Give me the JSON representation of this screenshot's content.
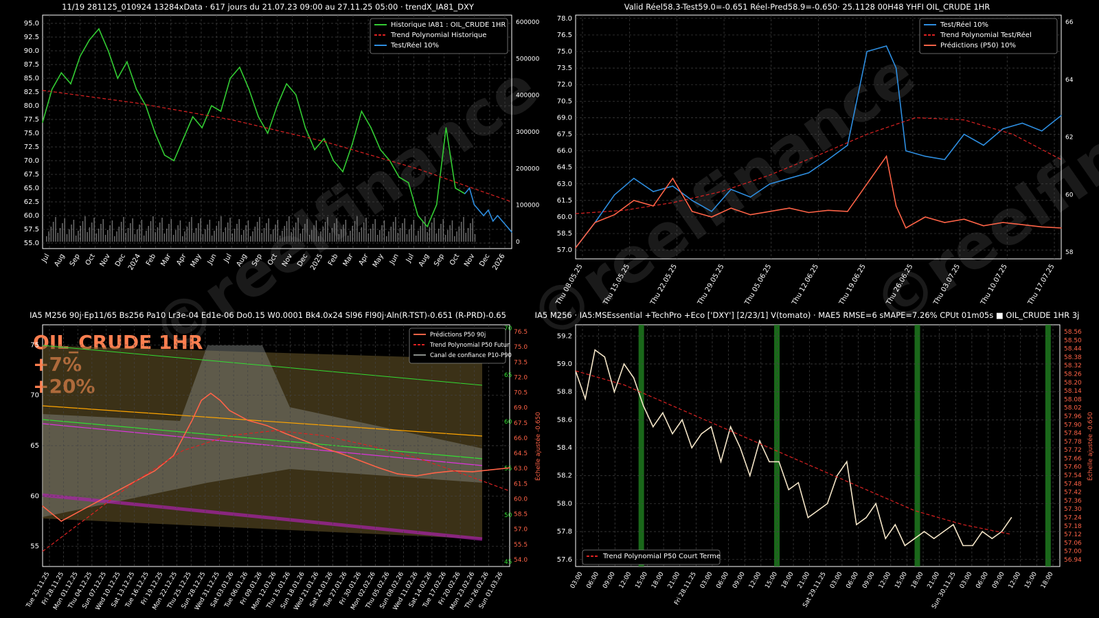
{
  "colors": {
    "background": "#000000",
    "hist_green": "#33cc33",
    "trend_red": "#dd2222",
    "test_blue": "#2e8ee0",
    "pred_tomato": "#ff6347",
    "volume_gray": "#888888",
    "grid": "#555555",
    "axis_red": "#ff6347"
  },
  "chart_data": [
    {
      "id": "top-left",
      "type": "line",
      "title": "11/19 281125_010924 13284xData · 617 jours du 21.07.23 09:00 au 27.11.25 05:00 · trendX_IA81_DXY",
      "x_tick_labels": [
        "Jul",
        "Aug",
        "Sep",
        "Oct",
        "Nov",
        "Dec",
        "2024",
        "Feb",
        "Mar",
        "Apr",
        "May",
        "Jun",
        "Jul",
        "Aug",
        "Sep",
        "Oct",
        "Nov",
        "Dec",
        "2025",
        "Feb",
        "Mar",
        "Apr",
        "May",
        "Jun",
        "Jul",
        "Aug",
        "Sep",
        "Oct",
        "Nov",
        "Dec",
        "2026"
      ],
      "y_tick_labels": [
        "95.0",
        "92.5",
        "90.0",
        "87.5",
        "85.0",
        "82.5",
        "80.0",
        "77.5",
        "75.0",
        "72.5",
        "70.0",
        "67.5",
        "65.0",
        "62.5",
        "60.0",
        "57.5",
        "55.0"
      ],
      "y2_tick_labels": [
        "600000",
        "500000",
        "400000",
        "300000",
        "200000",
        "100000",
        "0"
      ],
      "ylim": [
        54,
        96.5
      ],
      "y2lim": [
        0,
        620000
      ],
      "legend_position": "top-right",
      "legend": [
        "Historique IA81 : OIL_CRUDE 1HR",
        "Trend Polynomial Historique",
        "Test/Réel 10%"
      ],
      "series": [
        {
          "name": "Historique IA81 : OIL_CRUDE 1HR",
          "color": "#33cc33",
          "x": [
            0,
            2,
            4,
            6,
            8,
            10,
            12,
            14,
            16,
            18,
            20,
            22,
            24,
            26,
            28,
            30,
            32,
            34,
            36,
            38,
            40,
            42,
            44,
            46,
            48,
            50,
            52,
            54,
            56,
            58,
            60,
            62,
            64,
            66,
            68,
            70,
            72,
            74,
            76,
            78,
            80,
            82,
            84,
            86,
            88,
            90
          ],
          "y": [
            77,
            83,
            86,
            84,
            89,
            92,
            94,
            90,
            85,
            88,
            83,
            80,
            75,
            71,
            70,
            74,
            78,
            76,
            80,
            79,
            85,
            87,
            83,
            78,
            75,
            80,
            84,
            82,
            76,
            72,
            74,
            70,
            68,
            73,
            79,
            76,
            72,
            70,
            67,
            66,
            60,
            58,
            62,
            76,
            65,
            64
          ]
        },
        {
          "name": "Test/Réel 10%",
          "color": "#2e8ee0",
          "x": [
            90,
            91,
            92,
            93,
            94,
            95,
            96,
            97,
            98,
            99,
            100
          ],
          "y": [
            64,
            65,
            62,
            61,
            60,
            61,
            59,
            60,
            59,
            58,
            57
          ]
        },
        {
          "name": "Trend Polynomial Historique",
          "color": "#dd2222",
          "dashed": true,
          "x": [
            0,
            20,
            40,
            60,
            80,
            100
          ],
          "y": [
            82.8,
            80.5,
            77.5,
            73.5,
            68.5,
            62.5
          ]
        }
      ]
    },
    {
      "id": "top-right",
      "type": "line",
      "title": "Valid Réel58.3-Test59.0=-0.651 Réel-Pred58.9=-0.650· 25.1128 00H48 YHFI OIL_CRUDE 1HR",
      "x_tick_labels": [
        "Thu 08.05.25",
        "Thu 15.05.25",
        "Thu 22.05.25",
        "Thu 29.05.25",
        "Thu 05.06.25",
        "Thu 12.06.25",
        "Thu 19.06.25",
        "Thu 26.06.25",
        "Thu 03.07.25",
        "Thu 10.07.25",
        "Thu 17.07.25"
      ],
      "y_tick_labels": [
        "78.0",
        "76.5",
        "75.0",
        "73.5",
        "72.0",
        "70.5",
        "69.0",
        "67.5",
        "66.0",
        "64.5",
        "63.0",
        "61.5",
        "60.0",
        "58.5",
        "57.0"
      ],
      "y2_tick_labels": [
        "66",
        "64",
        "62",
        "60",
        "58"
      ],
      "ylim": [
        56.2,
        78.3
      ],
      "y2lim": [
        57.3,
        66.1
      ],
      "legend_position": "top-right",
      "legend": [
        "Test/Réel 10%",
        "Trend Polynomial Test/Réel",
        "Prédictions (P50) 10%"
      ],
      "series": [
        {
          "name": "Test/Réel 10%",
          "color": "#2e8ee0",
          "x": [
            0,
            4,
            8,
            12,
            16,
            20,
            24,
            28,
            32,
            36,
            40,
            44,
            48,
            52,
            56,
            60,
            64,
            66,
            68,
            72,
            76,
            80,
            84,
            88,
            92,
            96,
            100
          ],
          "y": [
            57.2,
            59.5,
            62.0,
            63.5,
            62.3,
            62.8,
            61.5,
            60.5,
            62.5,
            61.8,
            63.0,
            63.5,
            64.0,
            65.2,
            66.5,
            75.0,
            75.5,
            73.5,
            66.0,
            65.5,
            65.2,
            67.5,
            66.5,
            68.0,
            68.5,
            67.8,
            69.2
          ]
        },
        {
          "name": "Trend Polynomial Test/Réel",
          "color": "#dd2222",
          "dashed": true,
          "x": [
            0,
            10,
            20,
            30,
            40,
            50,
            60,
            70,
            80,
            90,
            100
          ],
          "y": [
            60.3,
            60.6,
            61.3,
            62.3,
            63.8,
            65.6,
            67.5,
            69.0,
            68.8,
            67.5,
            65.2
          ]
        },
        {
          "name": "Prédictions (P50) 10%",
          "color": "#ff6347",
          "x": [
            0,
            4,
            8,
            12,
            16,
            20,
            24,
            28,
            32,
            36,
            40,
            44,
            48,
            52,
            56,
            60,
            64,
            66,
            68,
            72,
            76,
            80,
            84,
            88,
            92,
            96,
            100
          ],
          "y": [
            57.2,
            59.5,
            60.2,
            61.5,
            61.0,
            63.5,
            60.5,
            60.0,
            60.8,
            60.2,
            60.5,
            60.8,
            60.4,
            60.6,
            60.5,
            63.0,
            65.5,
            61.0,
            59.0,
            60.0,
            59.5,
            59.8,
            59.2,
            59.5,
            59.3,
            59.1,
            59.0
          ]
        }
      ]
    },
    {
      "id": "bottom-left",
      "type": "line",
      "title": "IA5 M256 90j·Ep11/65 Bs256 Pa10 Lr3e-04 Ed1e-06 Do0.15 W0.0001 Bk4.0x24 Sl96 Fl90j·Aln(R-TST)-0.651 (R-PRD)-0.65",
      "overlay_text": [
        "OIL_CRUDE 1HR",
        "+7%",
        "+20%"
      ],
      "x_tick_labels": [
        "Tue 25.11.25",
        "Fri 28.11.25",
        "Mon 01.12.25",
        "Thu 04.12.25",
        "Sun 07.12.25",
        "Wed 10.12.25",
        "Sat 13.12.25",
        "Tue 16.12.25",
        "Fri 19.12.25",
        "Mon 22.12.25",
        "Thu 25.12.25",
        "Sun 28.12.25",
        "Wed 31.12.25",
        "Sat 03.01.26",
        "Tue 06.01.26",
        "Fri 09.01.26",
        "Mon 12.01.26",
        "Thu 15.01.26",
        "Sun 18.01.26",
        "Wed 21.01.26",
        "Sat 24.01.26",
        "Tue 27.01.26",
        "Fri 30.01.26",
        "Mon 02.02.26",
        "Thu 05.02.26",
        "Sun 08.02.26",
        "Wed 11.02.26",
        "Sat 14.02.26",
        "Tue 17.02.26",
        "Fri 20.02.26",
        "Mon 23.02.26",
        "Thu 26.02.26",
        "Sun 01.03.26"
      ],
      "y_tick_labels": [
        "75",
        "70",
        "65",
        "60",
        "55"
      ],
      "y2_tick_labels": [
        "76.5",
        "75.0",
        "73.5",
        "72.0",
        "70.5",
        "69.0",
        "67.5",
        "66.0",
        "64.5",
        "63.0",
        "61.5",
        "60.0",
        "58.5",
        "57.0",
        "55.5",
        "54.0"
      ],
      "y3_tick_labels": [
        "70",
        "65",
        "60",
        "55",
        "50",
        "45"
      ],
      "y2_label": "Échelle ajustée -0.650",
      "ylim": [
        53,
        77
      ],
      "legend_position": "top-right",
      "legend": [
        "Prédictions P50 90j",
        "Trend Polynomial P50 Futur",
        "Canal de confiance P10-P90"
      ],
      "series": [
        {
          "name": "Prédictions P50 90j",
          "color": "#ff6347",
          "x": [
            0,
            4,
            8,
            12,
            16,
            20,
            24,
            28,
            32,
            34,
            36,
            38,
            40,
            44,
            48,
            52,
            56,
            60,
            64,
            68,
            72,
            76,
            80,
            84,
            88,
            92,
            96,
            100
          ],
          "y": [
            59.0,
            57.5,
            58.5,
            59.5,
            60.5,
            61.5,
            62.5,
            64.0,
            67.5,
            69.5,
            70.2,
            69.5,
            68.5,
            67.5,
            67.0,
            66.2,
            65.5,
            64.8,
            64.2,
            63.5,
            62.8,
            62.2,
            62.0,
            62.3,
            62.5,
            62.4,
            62.6,
            62.8
          ]
        },
        {
          "name": "Trend Polynomial P50 Futur",
          "color": "#dd2222",
          "dashed": true,
          "x": [
            0,
            10,
            20,
            30,
            40,
            50,
            60,
            70,
            80,
            90,
            100
          ],
          "y": [
            54.5,
            58.0,
            61.5,
            64.5,
            66.0,
            66.5,
            66.0,
            65.0,
            63.8,
            62.2,
            60.5
          ]
        }
      ]
    },
    {
      "id": "bottom-right",
      "type": "line",
      "title": "IA5 M256 · IA5:MSEssential +TechPro +Eco ['DXY'] [2/23/1] V(tomato) · MAE5 RMSE=6 sMAPE=7.26% CPUt 01m05s ■ OIL_CRUDE 1HR 3j",
      "x_tick_labels": [
        "03:00",
        "06:00",
        "09:00",
        "12:00",
        "15:00",
        "18:00",
        "21:00",
        "Fri 28.11.25",
        "03:00",
        "06:00",
        "09:00",
        "12:00",
        "15:00",
        "18:00",
        "21:00",
        "Sat 29.11.25",
        "03:00",
        "06:00",
        "09:00",
        "12:00",
        "15:00",
        "18:00",
        "21:00",
        "Sun 30.11.25",
        "03:00",
        "06:00",
        "09:00",
        "12:00",
        "15:00",
        "18:00"
      ],
      "y_tick_labels": [
        "59.2",
        "59.0",
        "58.8",
        "58.6",
        "58.4",
        "58.2",
        "58.0",
        "57.8",
        "57.6"
      ],
      "y2_tick_labels": [
        "58.56",
        "58.50",
        "58.44",
        "58.38",
        "58.32",
        "58.26",
        "58.20",
        "58.14",
        "58.08",
        "58.02",
        "57.96",
        "57.90",
        "57.84",
        "57.78",
        "57.72",
        "57.66",
        "57.60",
        "57.54",
        "57.48",
        "57.42",
        "57.36",
        "57.30",
        "57.24",
        "57.18",
        "57.12",
        "57.06",
        "57.00",
        "56.94"
      ],
      "y2_label": "Échelle ajustée -0.650",
      "ylim": [
        57.55,
        59.28
      ],
      "legend_position": "bottom-left",
      "legend": [
        "Trend Polynomial P50 Court Terme"
      ],
      "series": [
        {
          "name": "P50",
          "color": "#f5e6c8",
          "x": [
            0,
            2,
            4,
            6,
            8,
            10,
            12,
            14,
            16,
            18,
            20,
            22,
            24,
            26,
            28,
            30,
            32,
            34,
            36,
            38,
            40,
            42,
            44,
            46,
            48,
            50,
            52,
            54,
            56,
            58,
            60,
            62,
            64,
            66,
            68,
            70,
            72,
            74,
            76,
            78,
            80,
            82,
            84,
            86,
            88,
            90
          ],
          "y": [
            58.95,
            58.75,
            59.1,
            59.05,
            58.8,
            59.0,
            58.9,
            58.7,
            58.55,
            58.65,
            58.5,
            58.6,
            58.4,
            58.5,
            58.55,
            58.3,
            58.55,
            58.4,
            58.2,
            58.45,
            58.3,
            58.3,
            58.1,
            58.15,
            57.9,
            57.95,
            58.0,
            58.2,
            58.3,
            57.85,
            57.9,
            58.0,
            57.75,
            57.85,
            57.7,
            57.75,
            57.8,
            57.75,
            57.8,
            57.85,
            57.7,
            57.7,
            57.8,
            57.75,
            57.8,
            57.9
          ]
        },
        {
          "name": "Trend Polynomial P50 Court Terme",
          "color": "#dd2222",
          "dashed": true,
          "x": [
            0,
            10,
            20,
            30,
            40,
            50,
            60,
            70,
            80,
            90
          ],
          "y": [
            58.95,
            58.85,
            58.7,
            58.55,
            58.4,
            58.25,
            58.1,
            57.95,
            57.85,
            57.78
          ]
        }
      ]
    }
  ]
}
